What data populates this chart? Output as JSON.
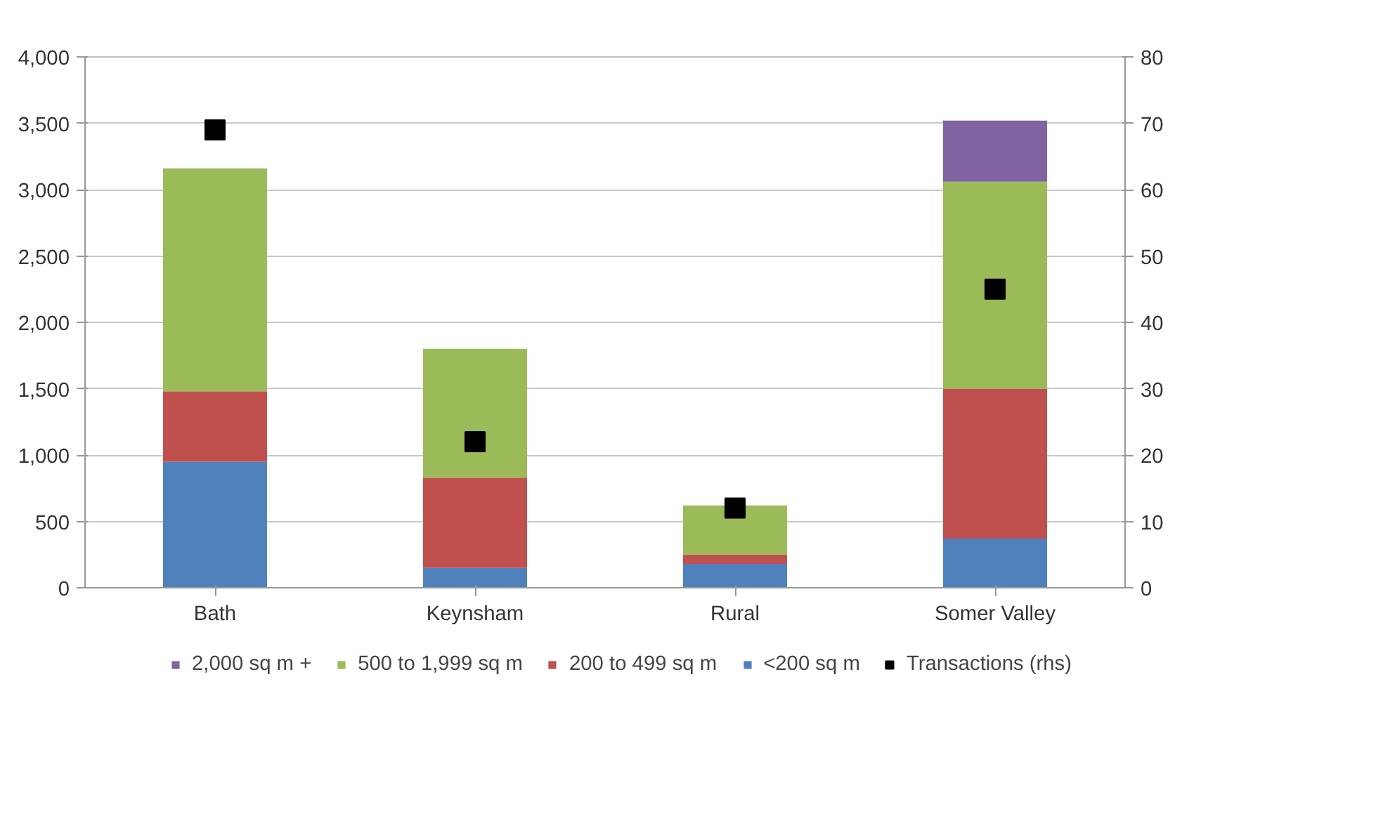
{
  "chart_data": {
    "type": "bar",
    "stacked": true,
    "categories": [
      "Bath",
      "Keynsham",
      "Rural",
      "Somer Valley"
    ],
    "series": [
      {
        "name": "<200 sq m",
        "color": "#4f81bd",
        "values": [
          950,
          150,
          180,
          370
        ]
      },
      {
        "name": "200 to 499 sq m",
        "color": "#c0504d",
        "values": [
          530,
          680,
          70,
          1130
        ]
      },
      {
        "name": "500 to 1,999 sq m",
        "color": "#9bbb59",
        "values": [
          1680,
          970,
          370,
          1560
        ]
      },
      {
        "name": "2,000 sq m +",
        "color": "#8064a2",
        "values": [
          0,
          0,
          0,
          460
        ]
      },
      {
        "name": "Transactions (rhs)",
        "type": "scatter",
        "axis": "y2",
        "marker": "square",
        "color": "#000000",
        "values": [
          69,
          22,
          12,
          45
        ]
      }
    ],
    "ylim": [
      0,
      4000
    ],
    "yticks": [
      {
        "value": 0,
        "label": "0"
      },
      {
        "value": 500,
        "label": "500"
      },
      {
        "value": 1000,
        "label": "1,000"
      },
      {
        "value": 1500,
        "label": "1,500"
      },
      {
        "value": 2000,
        "label": "2,000"
      },
      {
        "value": 2500,
        "label": "2,500"
      },
      {
        "value": 3000,
        "label": "3,000"
      },
      {
        "value": 3500,
        "label": "3,500"
      },
      {
        "value": 4000,
        "label": "4,000"
      }
    ],
    "y2lim": [
      0,
      80
    ],
    "y2ticks": [
      0,
      10,
      20,
      30,
      40,
      50,
      60,
      70,
      80
    ],
    "grid": "y",
    "legend": "bottom"
  }
}
